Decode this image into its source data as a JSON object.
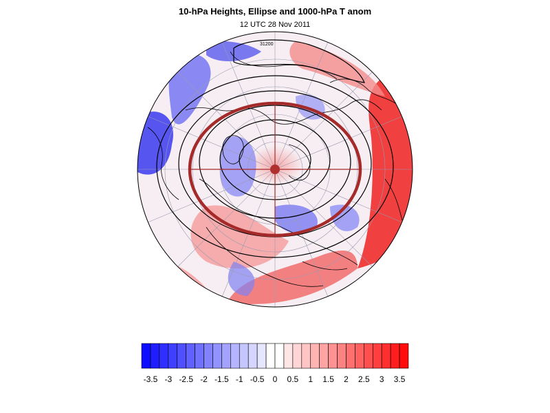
{
  "title": "10-hPa Heights, Ellipse and 1000-hPa T anom",
  "subtitle": "12 UTC 28 Nov 2011",
  "contour_labels": [
    "31200"
  ],
  "colors": {
    "cold": "#0000ff",
    "warm": "#ff0000",
    "ellipse": "#a52a2a",
    "coast": "#000000",
    "grid": "#9a9ab0"
  },
  "colorbar": {
    "levels": [
      -3.75,
      -3.5,
      -3.25,
      -3,
      -2.75,
      -2.5,
      -2.25,
      -2,
      -1.75,
      -1.5,
      -1.25,
      -1,
      -0.75,
      -0.5,
      -0.25,
      0,
      0.25,
      0.5,
      0.75,
      1,
      1.25,
      1.5,
      1.75,
      2,
      2.25,
      2.5,
      2.75,
      3,
      3.25,
      3.5,
      3.75
    ],
    "labels": [
      "-3.5",
      "-3",
      "-2.5",
      "-2",
      "-1.5",
      "-1",
      "-0.5",
      "0",
      "0.5",
      "1",
      "1.5",
      "2",
      "2.5",
      "3",
      "3.5"
    ]
  }
}
